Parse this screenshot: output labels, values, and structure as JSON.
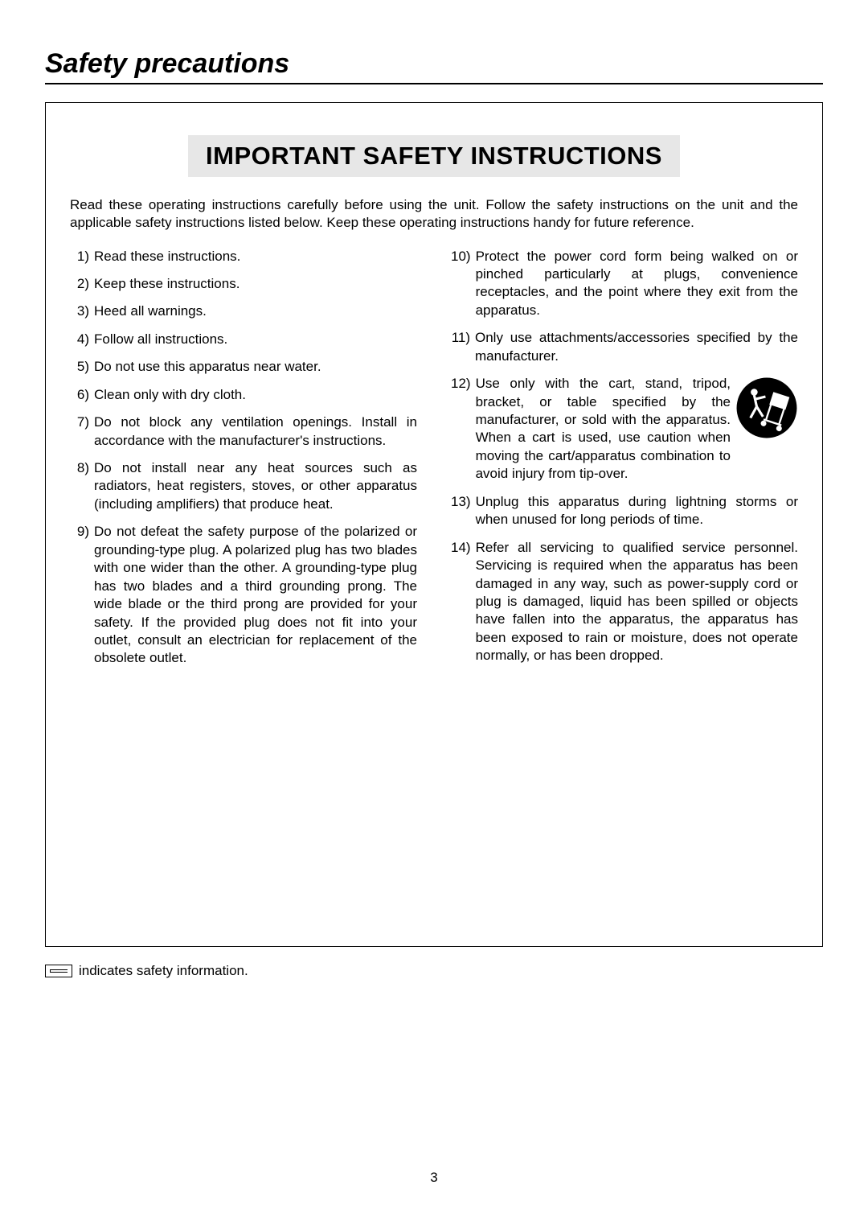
{
  "section_title": "Safety precautions",
  "box_title": "IMPORTANT SAFETY INSTRUCTIONS",
  "intro": "Read these operating instructions carefully before using the unit. Follow the safety instructions on the unit and the applicable safety instructions listed below. Keep these operating instructions handy for future reference.",
  "left_items": [
    {
      "n": "1)",
      "t": "Read these instructions.",
      "short": true
    },
    {
      "n": "2)",
      "t": "Keep these instructions.",
      "short": true
    },
    {
      "n": "3)",
      "t": "Heed all warnings.",
      "short": true
    },
    {
      "n": "4)",
      "t": "Follow all instructions.",
      "short": true
    },
    {
      "n": "5)",
      "t": "Do not use this apparatus near water.",
      "short": true
    },
    {
      "n": "6)",
      "t": "Clean only with dry cloth.",
      "short": true
    },
    {
      "n": "7)",
      "t": "Do not block any ventilation openings. Install in accordance with the manufacturer's instructions."
    },
    {
      "n": "8)",
      "t": "Do not install near any heat sources such as radiators, heat registers, stoves, or other apparatus (including amplifiers) that produce heat."
    },
    {
      "n": "9)",
      "t": "Do not defeat the safety purpose of the polarized or grounding-type plug. A polarized plug has two blades with one wider than the other. A grounding-type plug has two blades and a third grounding prong. The wide blade or the third prong are provided for your safety. If the provided plug does not fit into your outlet, consult an electrician for replacement of the obsolete outlet."
    }
  ],
  "right_items": [
    {
      "n": "10)",
      "t": "Protect the power cord form being walked on or pinched particularly at plugs, convenience receptacles, and the point where they exit from the apparatus."
    },
    {
      "n": "11)",
      "t": "Only use attachments/accessories specified by the manufacturer."
    },
    {
      "n": "12)",
      "t": "Use only with the cart, stand, tripod, bracket, or table specified by the manufacturer, or sold with the apparatus. When a cart is used, use caution when moving the cart/apparatus combination to avoid injury from tip-over.",
      "icon": true
    },
    {
      "n": "13)",
      "t": "Unplug this apparatus during lightning storms or when unused for long periods of time."
    },
    {
      "n": "14)",
      "t": "Refer all servicing to qualified service personnel. Servicing is required when the apparatus has been damaged in any way, such as power-supply cord or plug is damaged, liquid has been spilled or objects have fallen into the apparatus, the apparatus has been exposed to rain or moisture, does not operate normally, or has been dropped."
    }
  ],
  "footer_note": "indicates safety information.",
  "page_number": "3",
  "colors": {
    "text": "#000000",
    "background": "#ffffff",
    "title_bg": "#e7e7e7",
    "border": "#000000"
  },
  "fonts": {
    "section_title_pt": 34,
    "box_title_pt": 31,
    "body_pt": 17
  }
}
